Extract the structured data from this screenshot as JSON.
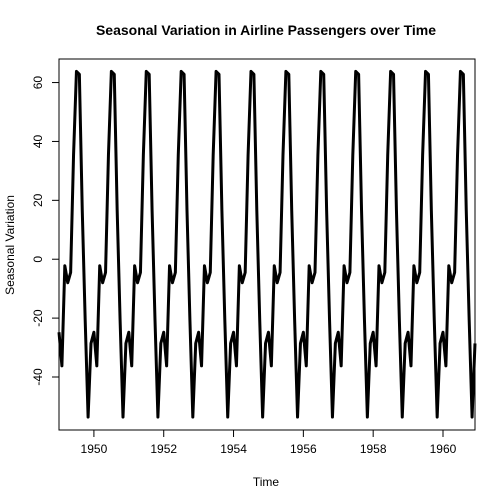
{
  "chart_data": {
    "type": "line",
    "title": "Seasonal Variation in Airline Passengers over Time",
    "xlabel": "Time",
    "ylabel": "Seasonal Variation",
    "xlim": [
      1949,
      1960.917
    ],
    "ylim": [
      -58,
      68
    ],
    "grid": false,
    "xticks": [
      1950,
      1952,
      1954,
      1956,
      1958,
      1960
    ],
    "xtick_labels": [
      "1950",
      "1952",
      "1954",
      "1956",
      "1958",
      "1960"
    ],
    "yticks": [
      -40,
      -20,
      0,
      20,
      40,
      60
    ],
    "ytick_labels": [
      "-40",
      "-20",
      "0",
      "20",
      "40",
      "60"
    ],
    "series": [
      {
        "name": "Seasonal Variation",
        "color": "#000000",
        "start": 1949,
        "frequency": 12,
        "pattern": [
          -24.8,
          -36.2,
          -2.2,
          -8.0,
          -4.5,
          35.4,
          63.8,
          62.8,
          16.5,
          -20.6,
          -53.6,
          -28.6
        ],
        "periods": 12
      }
    ]
  }
}
